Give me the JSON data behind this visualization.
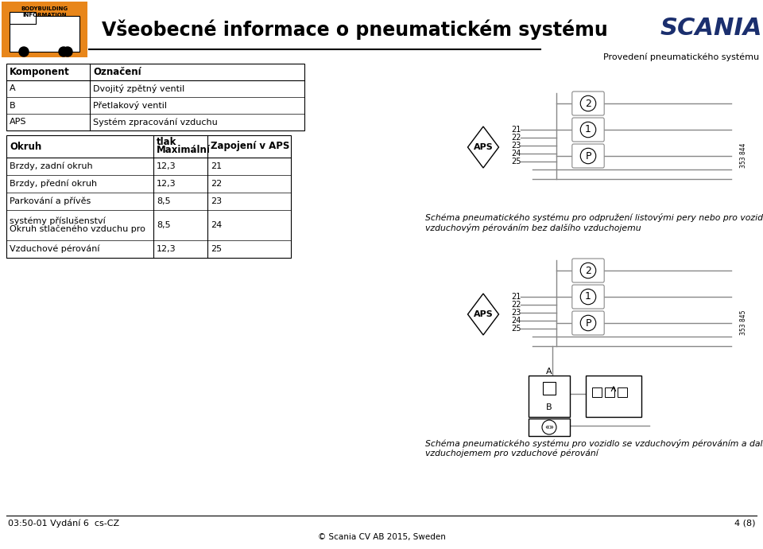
{
  "title": "Všeobecné informace o pneumatickém systému",
  "subtitle": "Provedení pneumatického systému",
  "footer_left": "03:50-01 Vydání 6  cs-CZ",
  "footer_right": "4 (8)",
  "footer_center": "© Scania CV AB 2015, Sweden",
  "table1_headers": [
    "Komponent",
    "Označení"
  ],
  "table1_rows": [
    [
      "A",
      "Dvojitý zpětný ventil"
    ],
    [
      "B",
      "Přetlakový ventil"
    ],
    [
      "APS",
      "Systém zpracování vzduchu"
    ]
  ],
  "table2_headers": [
    "Okruh",
    "Maximální\ntlak",
    "Zapojení v APS"
  ],
  "table2_rows": [
    [
      "Brzdy, zadní okruh",
      "12,3",
      "21"
    ],
    [
      "Brzdy, přední okruh",
      "12,3",
      "22"
    ],
    [
      "Parkování a přívěs",
      "8,5",
      "23"
    ],
    [
      "Okruh stlačeného vzduchu pro\nsystémy příslušenství",
      "8,5",
      "24"
    ],
    [
      "Vzduchové pérování",
      "12,3",
      "25"
    ]
  ],
  "schema1_caption": "Schéma pneumatického systému pro odpružení listovými pery nebo pro vozidlo se\nvzduchovým pérováním bez dalšího vzduchojemu",
  "schema2_caption": "Schéma pneumatického systému pro vozidlo se vzduchovým pérováním a dalším\nvzduchojemem pro vzduchové pérování",
  "schema1_num": "353 844",
  "schema2_num": "353 845",
  "bg_color": "#ffffff"
}
